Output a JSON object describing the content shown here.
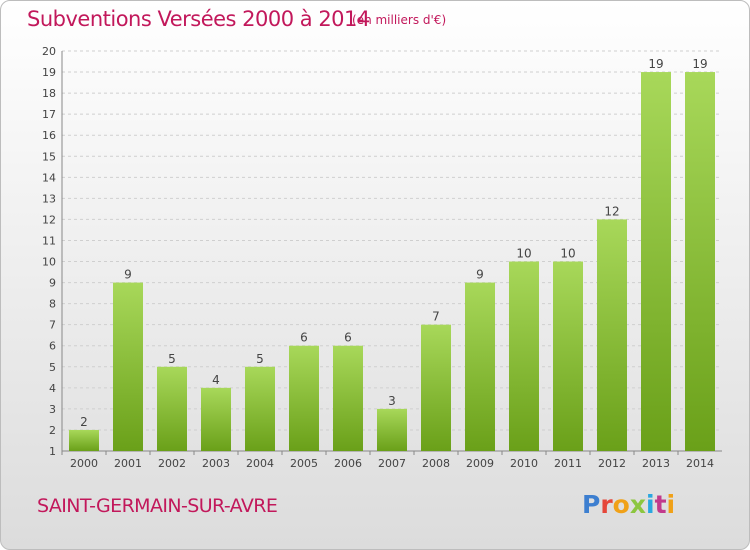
{
  "title": "Subventions Versées 2000 à 2014",
  "unit_note": "(en milliers d'€)",
  "commune": "SAINT-GERMAIN-SUR-AVRE",
  "logo": {
    "letters": [
      "P",
      "r",
      "o",
      "x",
      "i",
      "t",
      "i"
    ]
  },
  "colors": {
    "title": "#c2185b",
    "bar_light": "#a8d85a",
    "bar_dark": "#6aa019",
    "grid": "#cfcfcf"
  },
  "chart_data": {
    "type": "bar",
    "categories": [
      "2000",
      "2001",
      "2002",
      "2003",
      "2004",
      "2005",
      "2006",
      "2007",
      "2008",
      "2009",
      "2010",
      "2011",
      "2012",
      "2013",
      "2014"
    ],
    "values": [
      2,
      9,
      5,
      4,
      5,
      6,
      6,
      3,
      7,
      9,
      10,
      10,
      12,
      19,
      19
    ],
    "ylim": [
      1,
      20
    ],
    "yticks": [
      1,
      2,
      3,
      4,
      5,
      6,
      7,
      8,
      9,
      10,
      11,
      12,
      13,
      14,
      15,
      16,
      17,
      18,
      19,
      20
    ],
    "grid": true,
    "legend": "none"
  }
}
